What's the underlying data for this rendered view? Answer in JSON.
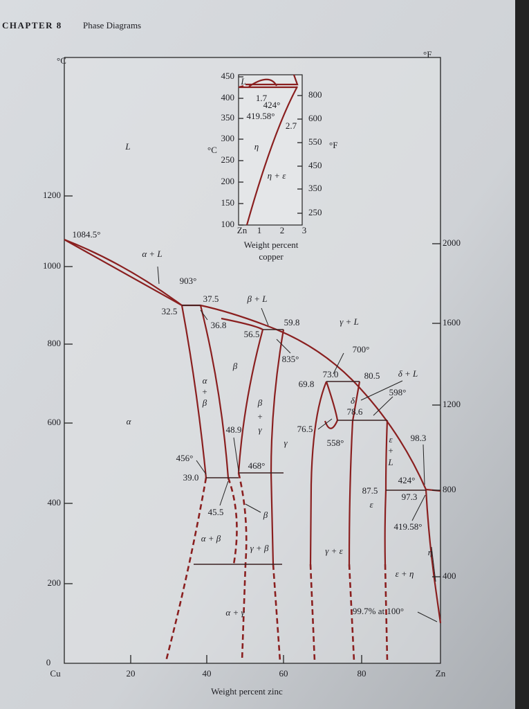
{
  "header": {
    "chapter": "CHAPTER 8",
    "title": "Phase Diagrams"
  },
  "diagram": {
    "y_unit_left": "°C",
    "y_unit_right": "°F",
    "x_axis_title": "Weight percent zinc",
    "x_ticks": [
      "0",
      "Cu",
      "20",
      "40",
      "60",
      "80",
      "Zn"
    ],
    "y_ticks_left": [
      "200",
      "400",
      "600",
      "800",
      "1000",
      "1200"
    ],
    "y_ticks_right": [
      "400",
      "800",
      "1200",
      "1600",
      "2000"
    ],
    "labels": [
      "L",
      "1084.5°",
      "α + L",
      "903°",
      "37.5",
      "32.5",
      "β + L",
      "36.8",
      "56.5",
      "59.8",
      "γ + L",
      "700°",
      "835°",
      "β",
      "73.0",
      "80.5",
      "δ + L",
      "69.8",
      "α",
      "+",
      "β",
      "δ",
      "598°",
      "78.6",
      "α",
      "β",
      "+",
      "γ",
      "76.5",
      "48.9",
      "ε",
      "+",
      "L",
      "98.3",
      "558°",
      "γ",
      "456°",
      "468°",
      "39.0",
      "424°",
      "87.5",
      "97.3",
      "ε",
      "45.5",
      "β",
      "419.58°",
      "α + β",
      "γ + β",
      "γ + ε",
      "η",
      "ε + η",
      "α + γ",
      "99.7% at 100°"
    ],
    "inset": {
      "unit_left": "°C",
      "unit_right": "°F",
      "y_ticks_left": [
        "450",
        "400",
        "350",
        "300",
        "250",
        "200",
        "150",
        "100"
      ],
      "y_ticks_right": [
        "800",
        "600",
        "550",
        "450",
        "350",
        "250"
      ],
      "x_ticks": [
        "Zn",
        "1",
        "2",
        "3"
      ],
      "x_axis_title": [
        "Weight percent",
        "copper"
      ],
      "labels": [
        "L",
        "1.7",
        "424°",
        "419.58°",
        "2.7",
        "η",
        "η + ε"
      ]
    }
  }
}
